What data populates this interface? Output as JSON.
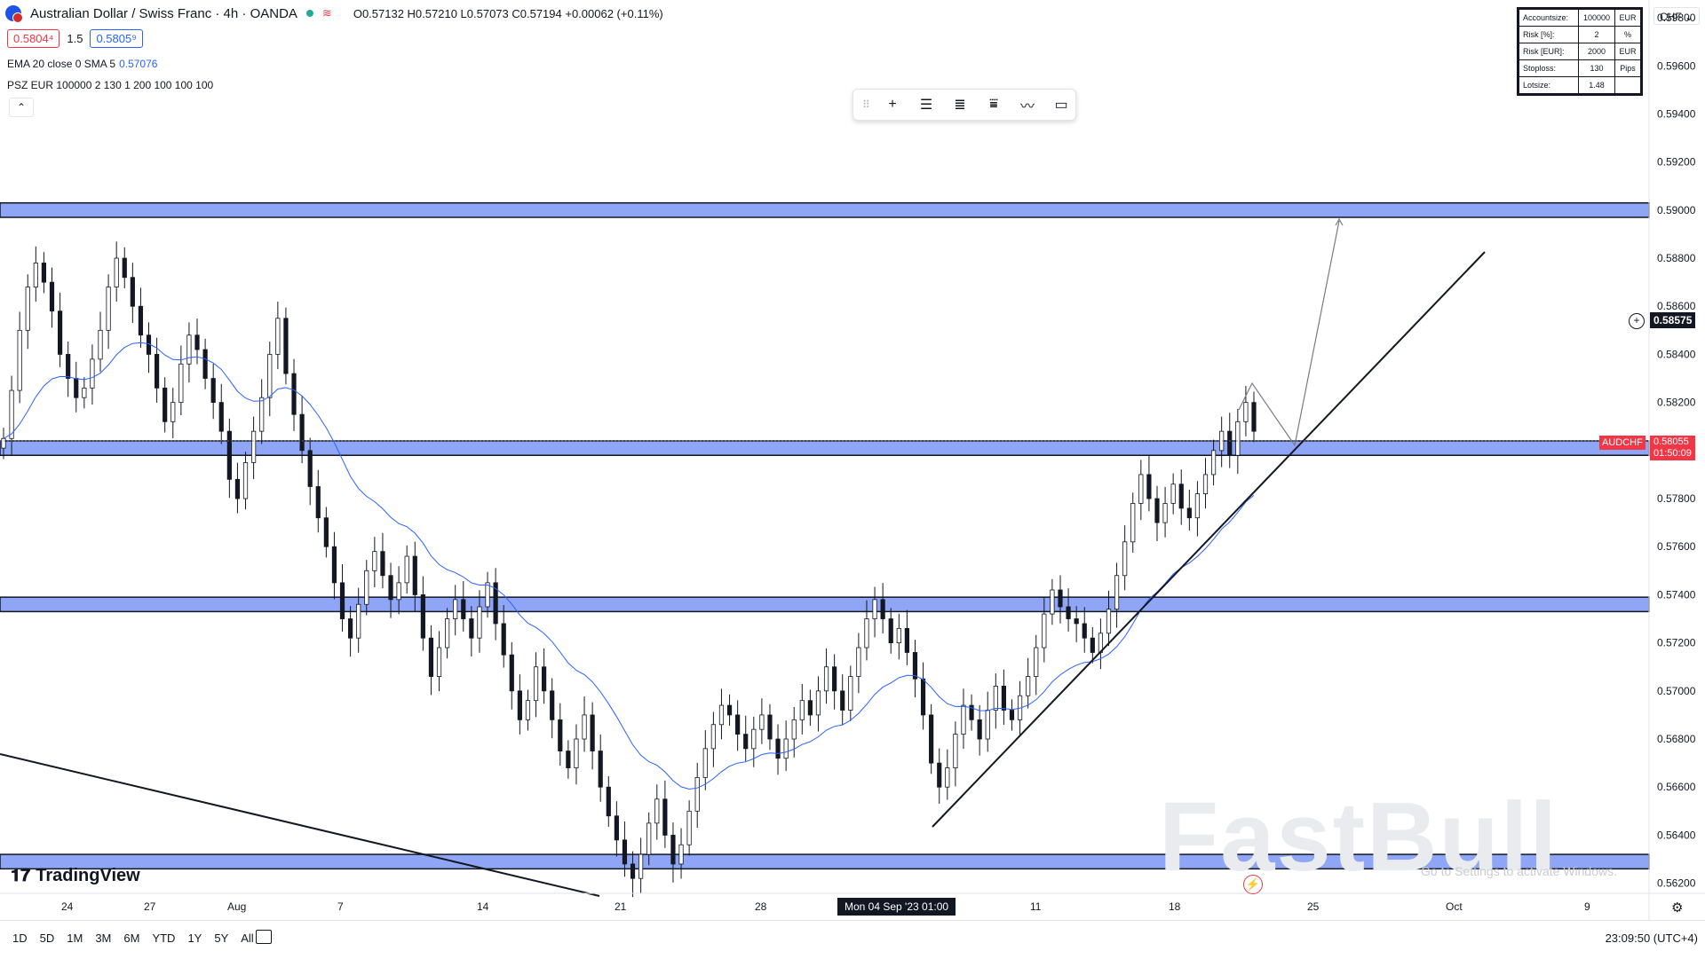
{
  "header": {
    "title": "Australian Dollar / Swiss Franc · 4h · OANDA",
    "ohlc": "O0.57132 H0.57210 L0.57073 C0.57194 +0.00062 (+0.11%)",
    "sell_price": "0.5804⁴",
    "spread": "1.5",
    "buy_price": "0.5805⁹",
    "ema_label": "EMA 20 close 0 SMA 5",
    "ema_value": "0.57076",
    "psz_label": "PSZ EUR 100000 2 130 1 200 100 100 100"
  },
  "psz_table": [
    {
      "k": "Accountsize:",
      "v": "100000",
      "u": "EUR"
    },
    {
      "k": "Risk [%]:",
      "v": "2",
      "u": "%"
    },
    {
      "k": "Risk [EUR]:",
      "v": "2000",
      "u": "EUR"
    },
    {
      "k": "Stoploss:",
      "v": "130",
      "u": "Pips"
    },
    {
      "k": "Lotsize:",
      "v": "1.48",
      "u": ""
    }
  ],
  "currency": "CHF",
  "toolbar_icons": [
    "crosshair-icon",
    "horizontal-lines-icon",
    "fib-icon",
    "range-icon",
    "path-icon",
    "rectangle-icon"
  ],
  "branding": {
    "logo": "TradingView",
    "watermark": "FastBull",
    "activate": "Go to Settings to activate Windows."
  },
  "bottom": {
    "ranges": [
      "1D",
      "5D",
      "1M",
      "3M",
      "6M",
      "YTD",
      "1Y",
      "5Y",
      "All"
    ],
    "clock": "23:09:50 (UTC+4)",
    "crosshair_label": "Mon 04 Sep '23   01:00"
  },
  "price_markers": {
    "crosshair_price": "0.58575",
    "symbol_tag": "AUDCHF",
    "last_price": "0.58055",
    "countdown": "01:50:09"
  },
  "colors": {
    "up": "#131722",
    "down": "#131722",
    "zone": "#7b96f5",
    "ema": "#2962ff",
    "last": "#f23645"
  },
  "chart_data": {
    "type": "candlestick",
    "y_ticks": [
      "0.59800",
      "0.59600",
      "0.59400",
      "0.59200",
      "0.59000",
      "0.58800",
      "0.58600",
      "0.58400",
      "0.58200",
      "0.58000",
      "0.57800",
      "0.57600",
      "0.57400",
      "0.57200",
      "0.57000",
      "0.56800",
      "0.56600",
      "0.56400",
      "0.56200"
    ],
    "x_ticks": [
      "24",
      "27",
      "Aug",
      "7",
      "14",
      "21",
      "28",
      "4",
      "11",
      "18",
      "25",
      "Oct",
      "9"
    ],
    "ylim": [
      0.561,
      0.599
    ],
    "zones": [
      {
        "low": 0.5897,
        "high": 0.5903
      },
      {
        "low": 0.5798,
        "high": 0.5804
      },
      {
        "low": 0.5733,
        "high": 0.5739
      },
      {
        "low": 0.5626,
        "high": 0.5632
      }
    ],
    "series_close": [
      0.5805,
      0.5825,
      0.585,
      0.5868,
      0.5878,
      0.587,
      0.5858,
      0.584,
      0.583,
      0.5822,
      0.5826,
      0.5838,
      0.585,
      0.5868,
      0.588,
      0.5872,
      0.586,
      0.5848,
      0.584,
      0.5826,
      0.5812,
      0.582,
      0.5836,
      0.5848,
      0.5842,
      0.583,
      0.582,
      0.5808,
      0.5788,
      0.578,
      0.5795,
      0.5808,
      0.5822,
      0.584,
      0.5855,
      0.5832,
      0.5815,
      0.58,
      0.5785,
      0.5772,
      0.576,
      0.5745,
      0.573,
      0.5722,
      0.5736,
      0.575,
      0.5758,
      0.5748,
      0.5738,
      0.5745,
      0.5756,
      0.574,
      0.5722,
      0.5706,
      0.5718,
      0.573,
      0.5738,
      0.573,
      0.5722,
      0.5735,
      0.5745,
      0.5728,
      0.5715,
      0.57,
      0.5688,
      0.5696,
      0.571,
      0.57,
      0.5688,
      0.5675,
      0.5668,
      0.568,
      0.569,
      0.5675,
      0.566,
      0.5648,
      0.5638,
      0.5628,
      0.5622,
      0.5632,
      0.5645,
      0.5655,
      0.564,
      0.5628,
      0.5636,
      0.565,
      0.5664,
      0.5676,
      0.5686,
      0.5694,
      0.569,
      0.5682,
      0.5676,
      0.5684,
      0.569,
      0.568,
      0.5672,
      0.568,
      0.5688,
      0.5696,
      0.569,
      0.57,
      0.571,
      0.57,
      0.5692,
      0.5706,
      0.5718,
      0.573,
      0.5738,
      0.573,
      0.572,
      0.5726,
      0.5716,
      0.5705,
      0.569,
      0.567,
      0.566,
      0.5668,
      0.5682,
      0.5694,
      0.5688,
      0.568,
      0.5692,
      0.5702,
      0.5692,
      0.5688,
      0.5698,
      0.5706,
      0.5718,
      0.5732,
      0.5742,
      0.5735,
      0.573,
      0.5728,
      0.5722,
      0.5716,
      0.5724,
      0.5734,
      0.5748,
      0.5762,
      0.5778,
      0.579,
      0.578,
      0.577,
      0.5778,
      0.5786,
      0.5776,
      0.5772,
      0.5782,
      0.579,
      0.58,
      0.5808,
      0.5798,
      0.5812,
      0.582,
      0.5808
    ]
  }
}
